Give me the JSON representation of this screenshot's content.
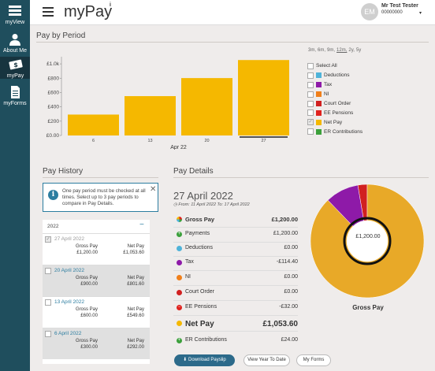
{
  "nav": [
    {
      "label": "myView",
      "icon": "grid-icon"
    },
    {
      "label": "About Me",
      "icon": "person-icon"
    },
    {
      "label": "myPay",
      "icon": "money-icon"
    },
    {
      "label": "myForms",
      "icon": "document-icon"
    }
  ],
  "header": {
    "title": "myPay",
    "info": "i",
    "user_initials": "EM",
    "user_name": "Mr Test Tester",
    "user_id": "00000000"
  },
  "pay_by_period": {
    "title": "Pay by Period",
    "range_options": [
      "3m,",
      "6m,",
      "9m,",
      "12m,",
      "2y,",
      "5y"
    ],
    "selected_range": "12m,",
    "legend": [
      {
        "label": "Select All",
        "color": null,
        "checked": false
      },
      {
        "label": "Deductions",
        "color": "#4fb3d9",
        "checked": false
      },
      {
        "label": "Tax",
        "color": "#8e1aa8",
        "checked": false
      },
      {
        "label": "NI",
        "color": "#f07f1a",
        "checked": false
      },
      {
        "label": "Court Order",
        "color": "#d12020",
        "checked": false
      },
      {
        "label": "EE Pensions",
        "color": "#e0221e",
        "checked": false
      },
      {
        "label": "Net Pay",
        "color": "#f5b800",
        "checked": true
      },
      {
        "label": "ER Contributions",
        "color": "#3ca03c",
        "checked": false
      }
    ]
  },
  "chart_data": {
    "type": "bar",
    "categories": [
      "6",
      "13",
      "20",
      "27"
    ],
    "values": [
      292,
      549.6,
      801.6,
      1053.6
    ],
    "series": [
      {
        "name": "Net Pay",
        "values": [
          292,
          549.6,
          801.6,
          1053.6
        ]
      }
    ],
    "xlabel": "Apr 22",
    "ylabel": "",
    "yticks": [
      "£0.00",
      "£200",
      "£400",
      "£600",
      "£800",
      "£1.0k"
    ],
    "ylim": [
      0,
      1100
    ],
    "bar_color": "#f5b800"
  },
  "pay_history": {
    "title": "Pay History",
    "alert_icon": "i",
    "alert": "One pay period must be checked at all times. Select up to 3 pay periods to compare in Pay Details.",
    "year": "2022",
    "collapse": "−",
    "items": [
      {
        "date": "27 April 2022",
        "gross_label": "Gross Pay",
        "gross": "£1,200.00",
        "net_label": "Net Pay",
        "net": "£1,053.60",
        "checked": true
      },
      {
        "date": "20 April 2022",
        "gross_label": "Gross Pay",
        "gross": "£900.00",
        "net_label": "Net Pay",
        "net": "£801.60",
        "checked": false
      },
      {
        "date": "13 April 2022",
        "gross_label": "Gross Pay",
        "gross": "£600.00",
        "net_label": "Net Pay",
        "net": "£549.60",
        "checked": false
      },
      {
        "date": "6 April 2022",
        "gross_label": "Gross Pay",
        "gross": "£300.00",
        "net_label": "Net Pay",
        "net": "£292.00",
        "checked": false
      }
    ]
  },
  "pay_details": {
    "title": "Pay Details",
    "date": "27 April 2022",
    "range": "From: 11 April 2022 To: 17 April 2022",
    "rows": [
      {
        "label": "Gross Pay",
        "value": "£1,200.00",
        "icon": "pie-icon",
        "color": "#f5b800",
        "style": "big"
      },
      {
        "label": "Payments",
        "value": "£1,200.00",
        "icon": "plus-circle-icon",
        "color": "#3ca03c",
        "style": ""
      },
      {
        "label": "Deductions",
        "value": "£0.00",
        "icon": "dot-icon",
        "color": "#4fb3d9",
        "style": ""
      },
      {
        "label": "Tax",
        "value": "-£114.40",
        "icon": "dot-icon",
        "color": "#8e1aa8",
        "style": ""
      },
      {
        "label": "NI",
        "value": "£0.00",
        "icon": "dot-icon",
        "color": "#f07f1a",
        "style": ""
      },
      {
        "label": "Court Order",
        "value": "£0.00",
        "icon": "dot-icon",
        "color": "#d12020",
        "style": ""
      },
      {
        "label": "EE Pensions",
        "value": "-£32.00",
        "icon": "minus-circle-icon",
        "color": "#e0221e",
        "style": ""
      },
      {
        "label": "Net Pay",
        "value": "£1,053.60",
        "icon": "dot-icon",
        "color": "#f5b800",
        "style": "big2"
      },
      {
        "label": "ER Contributions",
        "value": "£24.00",
        "icon": "plus-circle-icon",
        "color": "#3ca03c",
        "style": ""
      }
    ],
    "donut": {
      "center": "£1,200.00",
      "caption": "Gross Pay",
      "net_pay": 1053.6,
      "tax": 114.4,
      "ee_pensions": 32,
      "net_color": "#e8a928",
      "tax_color": "#8e1aa8",
      "pension_color": "#d12020"
    }
  },
  "buttons": {
    "download": "Download Payslip",
    "ytd": "View Year To Date",
    "forms": "My Forms"
  }
}
